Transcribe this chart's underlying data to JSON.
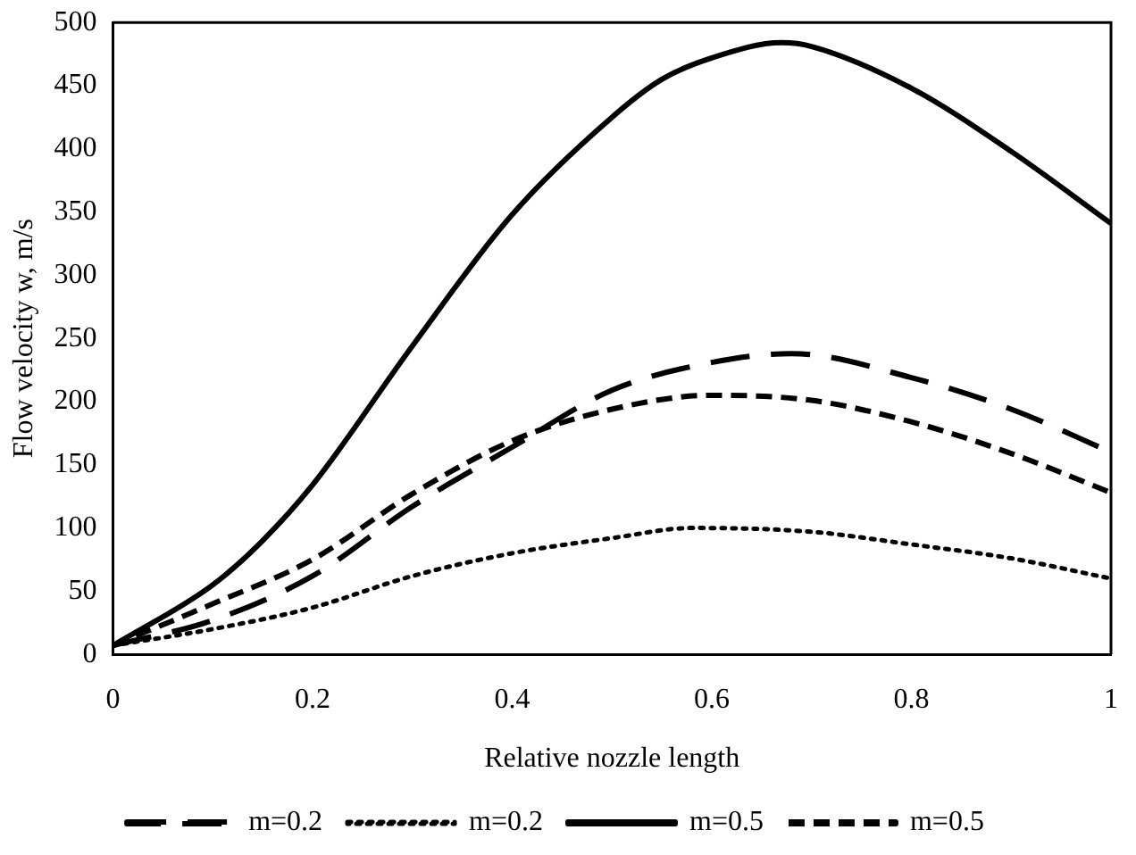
{
  "chart_data": {
    "type": "line",
    "xlabel": "Relative nozzle length",
    "ylabel": "Flow velocity w, m/s",
    "xlim": [
      0,
      1
    ],
    "xticks": [
      0,
      0.2,
      0.4,
      0.6,
      0.8,
      1
    ],
    "ylim": [
      0,
      500
    ],
    "yticks": [
      0,
      50,
      100,
      150,
      200,
      250,
      300,
      350,
      400,
      450,
      500
    ],
    "grid": false,
    "legend": "bottom",
    "marker": "none",
    "series": [
      {
        "name": "m=0.2",
        "color": "#000000",
        "line_style": "dashed",
        "x": [
          0,
          0.1,
          0.2,
          0.3,
          0.4,
          0.5,
          0.6,
          0.68,
          0.8,
          0.9,
          1
        ],
        "values": [
          7,
          27,
          62,
          117,
          164,
          209,
          231,
          238,
          219,
          194,
          160
        ]
      },
      {
        "name": "m=0.2",
        "color": "#000000",
        "line_style": "dotted",
        "x": [
          0,
          0.1,
          0.2,
          0.3,
          0.4,
          0.5,
          0.58,
          0.7,
          0.8,
          0.9,
          1
        ],
        "values": [
          7,
          20,
          37,
          62,
          80,
          92,
          100,
          97,
          87,
          76,
          60
        ]
      },
      {
        "name": "m=0.5",
        "color": "#000000",
        "line_style": "solid",
        "x": [
          0,
          0.1,
          0.15,
          0.2,
          0.3,
          0.4,
          0.5,
          0.55,
          0.6,
          0.67,
          0.7,
          0.8,
          0.9,
          1
        ],
        "values": [
          7,
          55,
          90,
          134,
          244,
          348,
          425,
          455,
          472,
          484,
          481,
          448,
          398,
          341
        ]
      },
      {
        "name": "m=0.5",
        "color": "#000000",
        "line_style": "dashed",
        "x": [
          0,
          0.1,
          0.2,
          0.3,
          0.4,
          0.5,
          0.6,
          0.7,
          0.8,
          0.9,
          1
        ],
        "values": [
          7,
          40,
          75,
          127,
          169,
          194,
          205,
          201,
          184,
          159,
          128
        ]
      }
    ]
  }
}
